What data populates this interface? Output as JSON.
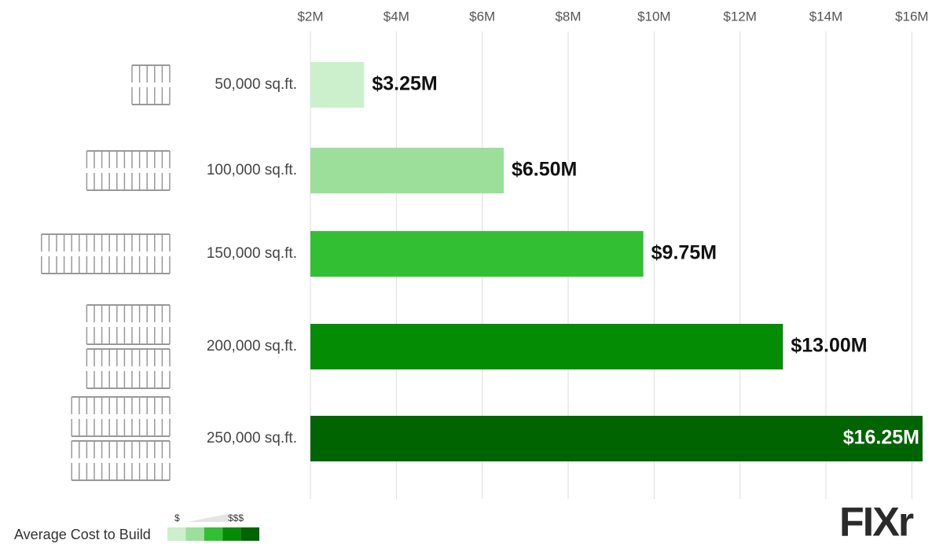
{
  "chart_data": {
    "type": "barh",
    "categories": [
      "50,000 sq.ft.",
      "100,000 sq.ft.",
      "150,000 sq.ft.",
      "200,000 sq.ft.",
      "250,000 sq.ft."
    ],
    "values": [
      3.25,
      6.5,
      9.75,
      13,
      16.25
    ],
    "value_labels": [
      "$3.25M",
      "$6.50M",
      "$9.75M",
      "$13.00M",
      "$16.25M"
    ],
    "colors": [
      "#ccefcc",
      "#9bdf9b",
      "#33bf33",
      "#048c04",
      "#006400"
    ],
    "xlim": [
      2,
      16.25
    ],
    "xticks": [
      {
        "value": 2,
        "label": "$2M"
      },
      {
        "value": 4,
        "label": "$4M"
      },
      {
        "value": 6,
        "label": "$6M"
      },
      {
        "value": 8,
        "label": "$8M"
      },
      {
        "value": 10,
        "label": "$10M"
      },
      {
        "value": 12,
        "label": "$12M"
      },
      {
        "value": 14,
        "label": "$14M"
      },
      {
        "value": 16,
        "label": "$16M"
      }
    ],
    "grid": true,
    "legend": {
      "title": "Average Cost to Build",
      "low": "$",
      "high": "$$$"
    },
    "brand": "FIXr"
  }
}
